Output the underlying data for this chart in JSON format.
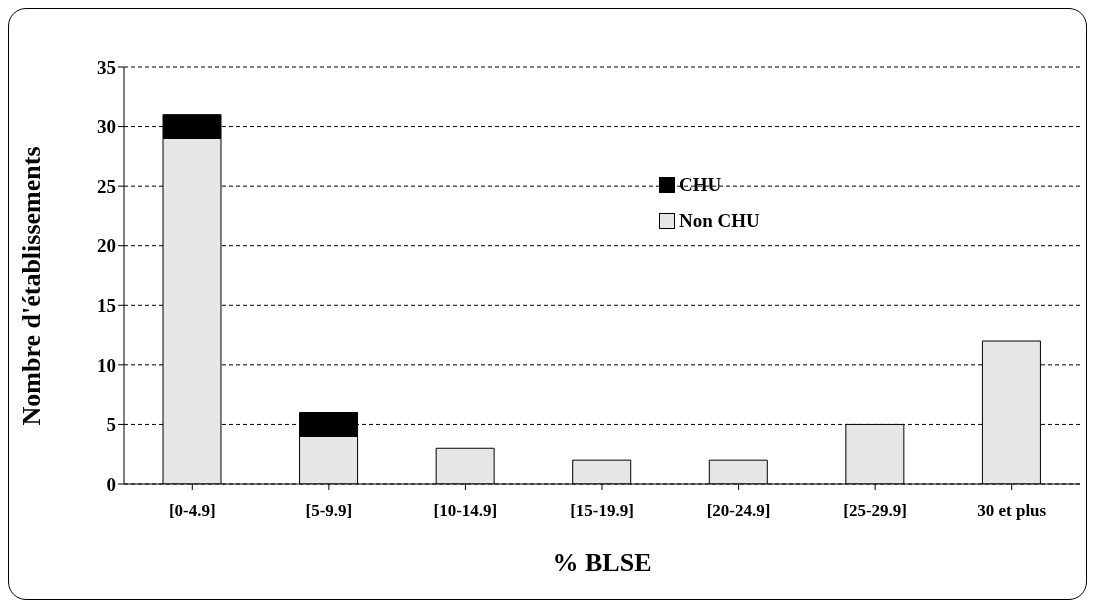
{
  "chart_data": {
    "type": "bar",
    "stacked": true,
    "xlabel": "% BLSE",
    "ylabel": "Nombre d'établissements",
    "categories": [
      "[0-4.9]",
      "[5-9.9]",
      "[10-14.9]",
      "[15-19.9]",
      "[20-24.9]",
      "[25-29.9]",
      "30 et plus"
    ],
    "series": [
      {
        "name": "Non CHU",
        "color": "#e6e6e6",
        "values": [
          29,
          4,
          3,
          2,
          2,
          5,
          12
        ]
      },
      {
        "name": "CHU",
        "color": "#000000",
        "values": [
          2,
          2,
          0,
          0,
          0,
          0,
          0
        ]
      }
    ],
    "ylim": [
      0,
      35
    ],
    "yticks": [
      0,
      5,
      10,
      15,
      20,
      25,
      30,
      35
    ],
    "grid": "y",
    "legend": "top"
  }
}
